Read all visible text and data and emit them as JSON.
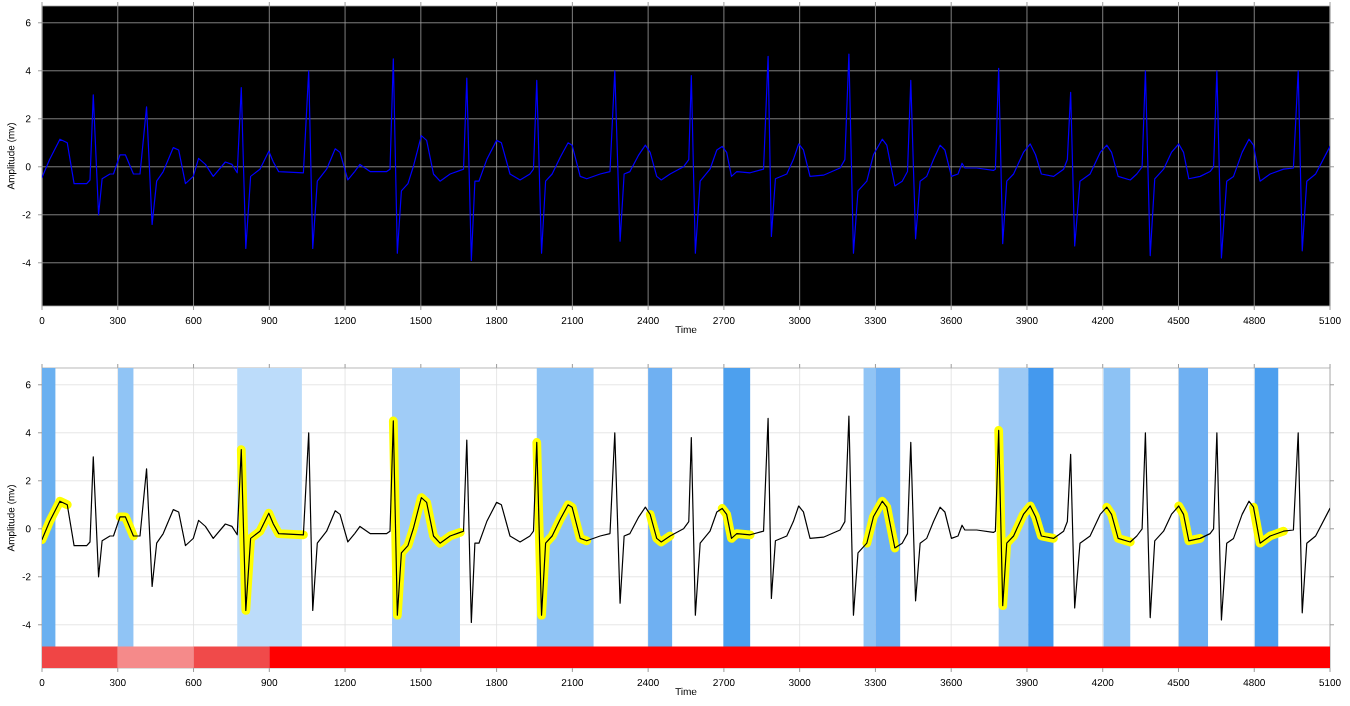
{
  "chart_data": [
    {
      "type": "line",
      "xlabel": "Time",
      "ylabel": "Amplitude (mv)",
      "xlim": [
        0,
        5100
      ],
      "ylim": [
        -5.8,
        6.7
      ],
      "xticks": [
        0,
        300,
        600,
        900,
        1200,
        1500,
        1800,
        2100,
        2400,
        2700,
        3000,
        3300,
        3600,
        3900,
        4200,
        4500,
        4800,
        5100
      ],
      "yticks": [
        -4,
        -2,
        0,
        2,
        4,
        6
      ],
      "grid": true,
      "x": [
        0,
        30,
        71,
        100,
        127,
        177,
        190,
        203,
        224,
        238,
        269,
        283,
        309,
        330,
        362,
        388,
        414,
        436,
        454,
        480,
        520,
        541,
        568,
        599,
        620,
        647,
        678,
        726,
        752,
        773,
        789,
        807,
        826,
        863,
        898,
        916,
        937,
        1035,
        1056,
        1072,
        1090,
        1127,
        1161,
        1180,
        1211,
        1238,
        1259,
        1299,
        1365,
        1378,
        1391,
        1407,
        1423,
        1449,
        1470,
        1502,
        1523,
        1550,
        1576,
        1616,
        1656,
        1669,
        1682,
        1700,
        1714,
        1730,
        1761,
        1800,
        1819,
        1853,
        1893,
        1932,
        1946,
        1959,
        1978,
        1994,
        2020,
        2052,
        2083,
        2099,
        2131,
        2157,
        2210,
        2249,
        2268,
        2289,
        2305,
        2328,
        2363,
        2389,
        2408,
        2434,
        2452,
        2487,
        2540,
        2561,
        2571,
        2587,
        2606,
        2645,
        2672,
        2693,
        2711,
        2730,
        2751,
        2804,
        2857,
        2875,
        2888,
        2904,
        2949,
        2975,
        2996,
        3015,
        3041,
        3094,
        3160,
        3179,
        3195,
        3213,
        3231,
        3266,
        3292,
        3327,
        3345,
        3377,
        3406,
        3427,
        3440,
        3459,
        3477,
        3503,
        3530,
        3556,
        3575,
        3601,
        3627,
        3643,
        3654,
        3701,
        3767,
        3775,
        3788,
        3804,
        3820,
        3847,
        3886,
        3913,
        3934,
        3957,
        4005,
        4045,
        4060,
        4073,
        4089,
        4110,
        4150,
        4190,
        4216,
        4235,
        4261,
        4309,
        4335,
        4356,
        4369,
        4388,
        4406,
        4441,
        4472,
        4501,
        4520,
        4541,
        4586,
        4625,
        4639,
        4652,
        4670,
        4691,
        4718,
        4752,
        4779,
        4797,
        4823,
        4863,
        4916,
        4955,
        4974,
        4990,
        5008,
        5043,
        5100
      ],
      "series": [
        {
          "color": "#0000ff",
          "values": [
            -0.45,
            0.3,
            1.15,
            1.0,
            -0.7,
            -0.7,
            -0.55,
            3.0,
            -2.0,
            -0.5,
            -0.3,
            -0.3,
            0.5,
            0.5,
            -0.3,
            -0.3,
            2.5,
            -2.4,
            -0.6,
            -0.2,
            0.8,
            0.7,
            -0.7,
            -0.4,
            0.35,
            0.1,
            -0.4,
            0.2,
            0.1,
            -0.25,
            3.3,
            -3.4,
            -0.4,
            -0.1,
            0.65,
            0.2,
            -0.2,
            -0.25,
            4.0,
            -3.4,
            -0.6,
            -0.1,
            0.75,
            0.6,
            -0.55,
            -0.2,
            0.1,
            -0.2,
            -0.2,
            -0.1,
            4.5,
            -3.6,
            -1.0,
            -0.7,
            0.0,
            1.3,
            1.1,
            -0.3,
            -0.6,
            -0.3,
            -0.15,
            -0.1,
            3.7,
            -3.9,
            -0.6,
            -0.6,
            0.3,
            1.1,
            1.0,
            -0.3,
            -0.55,
            -0.3,
            -0.1,
            3.6,
            -3.6,
            -0.6,
            -0.3,
            0.4,
            1.0,
            0.9,
            -0.4,
            -0.5,
            -0.3,
            -0.2,
            4.0,
            -3.1,
            -0.3,
            -0.2,
            0.5,
            0.9,
            0.6,
            -0.4,
            -0.55,
            -0.3,
            0.0,
            0.3,
            3.8,
            -3.6,
            -0.6,
            -0.1,
            0.7,
            0.85,
            0.6,
            -0.4,
            -0.2,
            -0.25,
            -0.1,
            4.6,
            -2.9,
            -0.5,
            -0.3,
            0.3,
            0.95,
            0.7,
            -0.4,
            -0.35,
            -0.05,
            0.3,
            4.7,
            -3.6,
            -1.0,
            -0.6,
            0.5,
            1.15,
            0.9,
            -0.8,
            -0.6,
            -0.2,
            3.6,
            -3.0,
            -0.6,
            -0.4,
            0.3,
            0.9,
            0.7,
            -0.4,
            -0.3,
            0.15,
            -0.05,
            -0.05,
            -0.15,
            -0.1,
            4.1,
            -3.2,
            -0.6,
            -0.3,
            0.6,
            0.95,
            0.5,
            -0.3,
            -0.4,
            -0.1,
            0.3,
            3.1,
            -3.3,
            -0.6,
            -0.3,
            0.6,
            0.9,
            0.6,
            -0.4,
            -0.55,
            -0.3,
            0.0,
            4.0,
            -3.7,
            -0.5,
            -0.1,
            0.6,
            0.95,
            0.6,
            -0.5,
            -0.4,
            -0.2,
            0.0,
            4.0,
            -3.8,
            -0.6,
            -0.4,
            0.6,
            1.15,
            0.9,
            -0.6,
            -0.3,
            -0.1,
            -0.05,
            4.0,
            -3.5,
            -0.6,
            -0.3,
            0.85
          ]
        }
      ]
    },
    {
      "type": "line",
      "xlabel": "Time",
      "ylabel": "Amplitude (mv)",
      "xlim": [
        0,
        5100
      ],
      "ylim": [
        -5.8,
        6.7
      ],
      "xticks": [
        0,
        300,
        600,
        900,
        1200,
        1500,
        1800,
        2100,
        2400,
        2700,
        3000,
        3300,
        3600,
        3900,
        4200,
        4500,
        4800,
        5100
      ],
      "yticks": [
        -4,
        -2,
        0,
        2,
        4,
        6
      ],
      "grid": true,
      "x": [
        0,
        30,
        71,
        100,
        127,
        177,
        190,
        203,
        224,
        238,
        269,
        283,
        309,
        330,
        362,
        388,
        414,
        436,
        454,
        480,
        520,
        541,
        568,
        599,
        620,
        647,
        678,
        726,
        752,
        773,
        789,
        807,
        826,
        863,
        898,
        916,
        937,
        1035,
        1056,
        1072,
        1090,
        1127,
        1161,
        1180,
        1211,
        1238,
        1259,
        1299,
        1365,
        1378,
        1391,
        1407,
        1423,
        1449,
        1470,
        1502,
        1523,
        1550,
        1576,
        1616,
        1656,
        1669,
        1682,
        1700,
        1714,
        1730,
        1761,
        1800,
        1819,
        1853,
        1893,
        1932,
        1946,
        1959,
        1978,
        1994,
        2020,
        2052,
        2083,
        2099,
        2131,
        2157,
        2210,
        2249,
        2268,
        2289,
        2305,
        2328,
        2363,
        2389,
        2408,
        2434,
        2452,
        2487,
        2540,
        2561,
        2571,
        2587,
        2606,
        2645,
        2672,
        2693,
        2711,
        2730,
        2751,
        2804,
        2857,
        2875,
        2888,
        2904,
        2949,
        2975,
        2996,
        3015,
        3041,
        3094,
        3160,
        3179,
        3195,
        3213,
        3231,
        3266,
        3292,
        3327,
        3345,
        3377,
        3406,
        3427,
        3440,
        3459,
        3477,
        3503,
        3530,
        3556,
        3575,
        3601,
        3627,
        3643,
        3654,
        3701,
        3767,
        3775,
        3788,
        3804,
        3820,
        3847,
        3886,
        3913,
        3934,
        3957,
        4005,
        4045,
        4060,
        4073,
        4089,
        4110,
        4150,
        4190,
        4216,
        4235,
        4261,
        4309,
        4335,
        4356,
        4369,
        4388,
        4406,
        4441,
        4472,
        4501,
        4520,
        4541,
        4586,
        4625,
        4639,
        4652,
        4670,
        4691,
        4718,
        4752,
        4779,
        4797,
        4823,
        4863,
        4916,
        4955,
        4974,
        4990,
        5008,
        5043,
        5100
      ],
      "bands": [
        {
          "axis": "x",
          "from": 0,
          "to": 53,
          "color": "#6ab0f0"
        },
        {
          "axis": "x",
          "from": 301,
          "to": 362,
          "color": "#90c4f5"
        },
        {
          "axis": "x",
          "from": 773,
          "to": 1029,
          "color": "#bcdcfa"
        },
        {
          "axis": "x",
          "from": 1386,
          "to": 1655,
          "color": "#a0ccf7"
        },
        {
          "axis": "x",
          "from": 1959,
          "to": 2184,
          "color": "#90c4f5"
        },
        {
          "axis": "x",
          "from": 2400,
          "to": 2495,
          "color": "#6fb0f2"
        },
        {
          "axis": "x",
          "from": 2698,
          "to": 2804,
          "color": "#4da0ee"
        },
        {
          "axis": "x",
          "from": 3253,
          "to": 3300,
          "color": "#90c4f5"
        },
        {
          "axis": "x",
          "from": 3300,
          "to": 3398,
          "color": "#6fb0f2"
        },
        {
          "axis": "x",
          "from": 3788,
          "to": 3905,
          "color": "#9cc9f5"
        },
        {
          "axis": "x",
          "from": 3905,
          "to": 4005,
          "color": "#4499ee"
        },
        {
          "axis": "x",
          "from": 4203,
          "to": 4309,
          "color": "#8dc2f4"
        },
        {
          "axis": "x",
          "from": 4501,
          "to": 4617,
          "color": "#6fb0f2"
        },
        {
          "axis": "x",
          "from": 4802,
          "to": 4895,
          "color": "#4d9fee"
        },
        {
          "axis": "x",
          "from": 0,
          "to": 300,
          "color": "#f04545"
        },
        {
          "axis": "x",
          "from": 300,
          "to": 600,
          "color": "#f58a8a"
        },
        {
          "axis": "x",
          "from": 600,
          "to": 900,
          "color": "#f04a4a"
        },
        {
          "axis": "x",
          "from": 900,
          "to": 5100,
          "color": "#ff0000"
        }
      ],
      "series": [
        {
          "type": "line",
          "color": "#ffff00",
          "x": [
            0,
            30,
            71,
            100,
            200,
            309,
            330,
            362,
            500,
            789,
            807,
            826,
            863,
            898,
            916,
            937,
            1035,
            1200,
            1391,
            1407,
            1423,
            1449,
            1470,
            1502,
            1523,
            1550,
            1576,
            1616,
            1656,
            1800,
            1959,
            1978,
            1994,
            2020,
            2052,
            2083,
            2099,
            2131,
            2157,
            2300,
            2408,
            2434,
            2452,
            2487,
            2600,
            2693,
            2711,
            2730,
            2751,
            2804,
            3000,
            3266,
            3292,
            3327,
            3345,
            3377,
            3600,
            3788,
            3804,
            3820,
            3847,
            3886,
            3913,
            3934,
            3957,
            4005,
            4100,
            4216,
            4235,
            4261,
            4309,
            4400,
            4501,
            4520,
            4541,
            4586,
            4700,
            4797,
            4823,
            4863,
            4916
          ],
          "values": [
            -0.45,
            0.3,
            1.15,
            1.0,
            null,
            0.5,
            0.5,
            -0.3,
            null,
            3.3,
            -3.4,
            -0.4,
            -0.1,
            0.65,
            0.2,
            -0.2,
            -0.25,
            null,
            4.5,
            -3.6,
            -1.0,
            -0.7,
            0.0,
            1.3,
            1.1,
            -0.3,
            -0.6,
            -0.3,
            -0.15,
            null,
            3.6,
            -3.6,
            -0.6,
            -0.3,
            0.4,
            1.0,
            0.9,
            -0.4,
            -0.5,
            null,
            0.6,
            -0.4,
            -0.55,
            -0.3,
            null,
            0.85,
            0.6,
            -0.4,
            -0.2,
            -0.25,
            null,
            -0.6,
            0.5,
            1.15,
            0.9,
            -0.8,
            null,
            4.1,
            -3.2,
            -0.6,
            -0.3,
            0.6,
            0.95,
            0.5,
            -0.3,
            -0.4,
            null,
            0.9,
            0.6,
            -0.4,
            -0.55,
            null,
            0.95,
            0.6,
            -0.5,
            -0.4,
            null,
            0.9,
            -0.6,
            -0.3,
            -0.1
          ]
        },
        {
          "type": "line",
          "color": "#000000",
          "values": [
            -0.45,
            0.3,
            1.15,
            1.0,
            -0.7,
            -0.7,
            -0.55,
            3.0,
            -2.0,
            -0.5,
            -0.3,
            -0.3,
            0.5,
            0.5,
            -0.3,
            -0.3,
            2.5,
            -2.4,
            -0.6,
            -0.2,
            0.8,
            0.7,
            -0.7,
            -0.4,
            0.35,
            0.1,
            -0.4,
            0.2,
            0.1,
            -0.25,
            3.3,
            -3.4,
            -0.4,
            -0.1,
            0.65,
            0.2,
            -0.2,
            -0.25,
            4.0,
            -3.4,
            -0.6,
            -0.1,
            0.75,
            0.6,
            -0.55,
            -0.2,
            0.1,
            -0.2,
            -0.2,
            -0.1,
            4.5,
            -3.6,
            -1.0,
            -0.7,
            0.0,
            1.3,
            1.1,
            -0.3,
            -0.6,
            -0.3,
            -0.15,
            -0.1,
            3.7,
            -3.9,
            -0.6,
            -0.6,
            0.3,
            1.1,
            1.0,
            -0.3,
            -0.55,
            -0.3,
            -0.1,
            3.6,
            -3.6,
            -0.6,
            -0.3,
            0.4,
            1.0,
            0.9,
            -0.4,
            -0.5,
            -0.3,
            -0.2,
            4.0,
            -3.1,
            -0.3,
            -0.2,
            0.5,
            0.9,
            0.6,
            -0.4,
            -0.55,
            -0.3,
            0.0,
            0.3,
            3.8,
            -3.6,
            -0.6,
            -0.1,
            0.7,
            0.85,
            0.6,
            -0.4,
            -0.2,
            -0.25,
            -0.1,
            4.6,
            -2.9,
            -0.5,
            -0.3,
            0.3,
            0.95,
            0.7,
            -0.4,
            -0.35,
            -0.05,
            0.3,
            4.7,
            -3.6,
            -1.0,
            -0.6,
            0.5,
            1.15,
            0.9,
            -0.8,
            -0.6,
            -0.2,
            3.6,
            -3.0,
            -0.6,
            -0.4,
            0.3,
            0.9,
            0.7,
            -0.4,
            -0.3,
            0.15,
            -0.05,
            -0.05,
            -0.15,
            -0.1,
            4.1,
            -3.2,
            -0.6,
            -0.3,
            0.6,
            0.95,
            0.5,
            -0.3,
            -0.4,
            -0.1,
            0.3,
            3.1,
            -3.3,
            -0.6,
            -0.3,
            0.6,
            0.9,
            0.6,
            -0.4,
            -0.55,
            -0.3,
            0.0,
            4.0,
            -3.7,
            -0.5,
            -0.1,
            0.6,
            0.95,
            0.6,
            -0.5,
            -0.4,
            -0.2,
            0.0,
            4.0,
            -3.8,
            -0.6,
            -0.4,
            0.6,
            1.15,
            0.9,
            -0.6,
            -0.3,
            -0.1,
            -0.05,
            4.0,
            -3.5,
            -0.6,
            -0.3,
            0.85
          ]
        }
      ]
    }
  ]
}
